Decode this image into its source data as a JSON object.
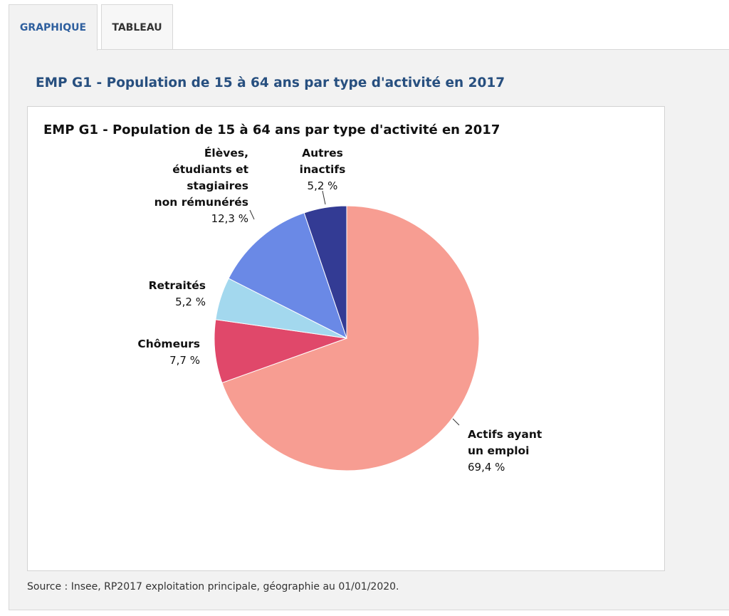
{
  "tabs": [
    {
      "label": "GRAPHIQUE",
      "active": true
    },
    {
      "label": "TABLEAU",
      "active": false
    }
  ],
  "panel": {
    "title": "EMP G1 - Population de 15 à 64 ans par type d'activité en 2017",
    "source": "Source : Insee, RP2017 exploitation principale, géographie au 01/01/2020."
  },
  "colors": {
    "accent": "#2e5f9e",
    "title": "#274f7f"
  },
  "chart_data": {
    "type": "pie",
    "title": "EMP G1 - Population de 15 à 64 ans par type d'activité en 2017",
    "legend": "none",
    "slices": [
      {
        "lines": [
          "Actifs ayant",
          "un emploi"
        ],
        "value": 69.4,
        "value_label": "69,4 %",
        "color": "#f79d92"
      },
      {
        "lines": [
          "Chômeurs"
        ],
        "value": 7.7,
        "value_label": "7,7 %",
        "color": "#e0486a"
      },
      {
        "lines": [
          "Retraités"
        ],
        "value": 5.2,
        "value_label": "5,2 %",
        "color": "#a3d8ee"
      },
      {
        "lines": [
          "Élèves,",
          "étudiants et",
          "stagiaires",
          "non rémunérés"
        ],
        "value": 12.3,
        "value_label": "12,3 %",
        "color": "#6a89e6"
      },
      {
        "lines": [
          "Autres",
          "inactifs"
        ],
        "value": 5.2,
        "value_label": "5,2 %",
        "color": "#333b94"
      }
    ]
  }
}
